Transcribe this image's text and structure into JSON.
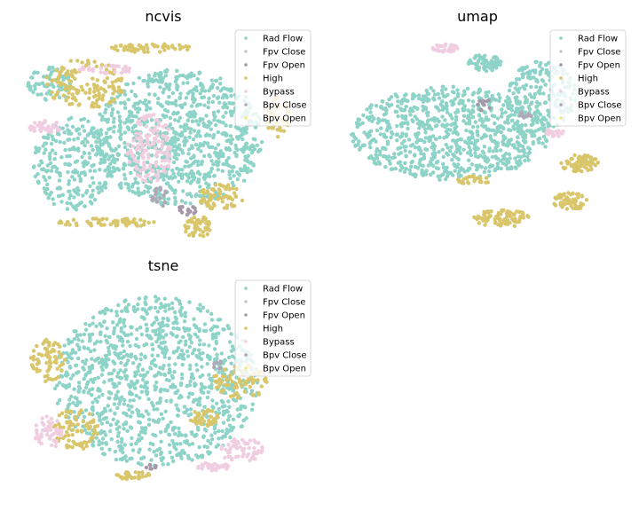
{
  "colors": {
    "rad_flow": "#8ed3c7",
    "fpv_close": "#c9c9c0",
    "fpv_open": "#a598a8",
    "high": "#d9c66a",
    "bypass": "#f0cde0",
    "bpv_close": "#b0a8b8",
    "bpv_open": "#f2e88a"
  },
  "chart_data": [
    {
      "type": "scatter",
      "title": "ncvis",
      "grid": false,
      "axes_visible": false,
      "legend_position": "top-right",
      "legend": [
        "Rad Flow",
        "Fpv Close",
        "Fpv Open",
        "High",
        "Bypass",
        "Bpv Close",
        "Bpv Open"
      ],
      "xlim": [
        0,
        100
      ],
      "ylim": [
        0,
        100
      ],
      "clusters": [
        {
          "series": "Rad Flow",
          "cx": 55,
          "cy": 50,
          "rx": 30,
          "ry": 32,
          "n": 900
        },
        {
          "series": "Rad Flow",
          "cx": 18,
          "cy": 38,
          "rx": 14,
          "ry": 22,
          "n": 250
        },
        {
          "series": "Rad Flow",
          "cx": 10,
          "cy": 75,
          "rx": 8,
          "ry": 8,
          "n": 70
        },
        {
          "series": "High",
          "cx": 22,
          "cy": 75,
          "rx": 14,
          "ry": 12,
          "n": 140
        },
        {
          "series": "High",
          "cx": 70,
          "cy": 22,
          "rx": 8,
          "ry": 6,
          "n": 70
        },
        {
          "series": "High",
          "cx": 62,
          "cy": 8,
          "rx": 5,
          "ry": 5,
          "n": 50
        },
        {
          "series": "High",
          "cx": 90,
          "cy": 60,
          "rx": 4,
          "ry": 10,
          "n": 40
        },
        {
          "series": "High",
          "cx": 30,
          "cy": 10,
          "rx": 18,
          "ry": 2,
          "n": 60
        },
        {
          "series": "High",
          "cx": 45,
          "cy": 92,
          "rx": 15,
          "ry": 2,
          "n": 50
        },
        {
          "series": "Bypass",
          "cx": 45,
          "cy": 45,
          "rx": 8,
          "ry": 16,
          "n": 140
        },
        {
          "series": "Bypass",
          "cx": 8,
          "cy": 55,
          "rx": 6,
          "ry": 3,
          "n": 40
        },
        {
          "series": "Bypass",
          "cx": 30,
          "cy": 82,
          "rx": 10,
          "ry": 2,
          "n": 30
        },
        {
          "series": "Fpv Open",
          "cx": 58,
          "cy": 15,
          "rx": 4,
          "ry": 3,
          "n": 15
        },
        {
          "series": "Bpv Close",
          "cx": 48,
          "cy": 22,
          "rx": 3,
          "ry": 5,
          "n": 15
        }
      ]
    },
    {
      "type": "scatter",
      "title": "umap",
      "grid": false,
      "axes_visible": false,
      "legend_position": "top-right",
      "legend": [
        "Rad Flow",
        "Fpv Close",
        "Fpv Open",
        "High",
        "Bypass",
        "Bpv Close",
        "Bpv Open"
      ],
      "xlim": [
        0,
        100
      ],
      "ylim": [
        0,
        100
      ],
      "clusters": [
        {
          "series": "Rad Flow",
          "cx": 40,
          "cy": 52,
          "rx": 35,
          "ry": 22,
          "n": 850
        },
        {
          "series": "Rad Flow",
          "cx": 72,
          "cy": 70,
          "rx": 12,
          "ry": 16,
          "n": 200
        },
        {
          "series": "Rad Flow",
          "cx": 52,
          "cy": 85,
          "rx": 6,
          "ry": 4,
          "n": 60
        },
        {
          "series": "High",
          "cx": 85,
          "cy": 38,
          "rx": 7,
          "ry": 4,
          "n": 70
        },
        {
          "series": "High",
          "cx": 82,
          "cy": 20,
          "rx": 6,
          "ry": 4,
          "n": 50
        },
        {
          "series": "High",
          "cx": 58,
          "cy": 12,
          "rx": 10,
          "ry": 4,
          "n": 80
        },
        {
          "series": "High",
          "cx": 48,
          "cy": 30,
          "rx": 6,
          "ry": 2,
          "n": 30
        },
        {
          "series": "Bypass",
          "cx": 38,
          "cy": 92,
          "rx": 5,
          "ry": 2,
          "n": 30
        },
        {
          "series": "Bypass",
          "cx": 76,
          "cy": 52,
          "rx": 4,
          "ry": 2,
          "n": 20
        },
        {
          "series": "Fpv Open",
          "cx": 52,
          "cy": 65,
          "rx": 3,
          "ry": 3,
          "n": 12
        },
        {
          "series": "Bpv Close",
          "cx": 66,
          "cy": 60,
          "rx": 3,
          "ry": 2,
          "n": 10
        }
      ]
    },
    {
      "type": "scatter",
      "title": "tsne",
      "grid": false,
      "axes_visible": false,
      "legend_position": "top-right",
      "legend": [
        "Rad Flow",
        "Fpv Close",
        "Fpv Open",
        "High",
        "Bypass",
        "Bpv Close",
        "Bpv Open"
      ],
      "xlim": [
        0,
        100
      ],
      "ylim": [
        0,
        100
      ],
      "clusters": [
        {
          "series": "Rad Flow",
          "cx": 48,
          "cy": 52,
          "rx": 36,
          "ry": 40,
          "n": 1100
        },
        {
          "series": "High",
          "cx": 10,
          "cy": 62,
          "rx": 6,
          "ry": 10,
          "n": 70
        },
        {
          "series": "High",
          "cx": 20,
          "cy": 30,
          "rx": 8,
          "ry": 10,
          "n": 80
        },
        {
          "series": "High",
          "cx": 78,
          "cy": 52,
          "rx": 10,
          "ry": 8,
          "n": 80
        },
        {
          "series": "High",
          "cx": 65,
          "cy": 35,
          "rx": 5,
          "ry": 4,
          "n": 40
        },
        {
          "series": "High",
          "cx": 40,
          "cy": 8,
          "rx": 6,
          "ry": 2,
          "n": 30
        },
        {
          "series": "Bypass",
          "cx": 10,
          "cy": 28,
          "rx": 5,
          "ry": 8,
          "n": 50
        },
        {
          "series": "Bypass",
          "cx": 78,
          "cy": 20,
          "rx": 8,
          "ry": 6,
          "n": 60
        },
        {
          "series": "Bypass",
          "cx": 68,
          "cy": 12,
          "rx": 6,
          "ry": 2,
          "n": 30
        },
        {
          "series": "Fpv Open",
          "cx": 46,
          "cy": 12,
          "rx": 3,
          "ry": 1,
          "n": 8
        },
        {
          "series": "Bpv Close",
          "cx": 70,
          "cy": 60,
          "rx": 2,
          "ry": 2,
          "n": 8
        }
      ]
    }
  ]
}
